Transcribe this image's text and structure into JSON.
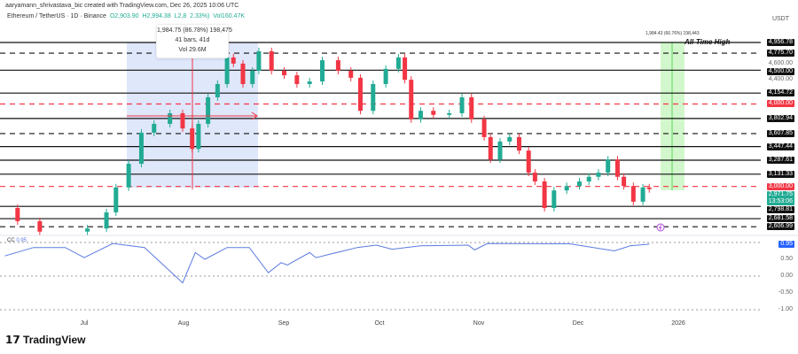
{
  "header": {
    "credit": "aaryamann_shrivastava_bic created with TradingView.com, Dec 26, 2025 10:06 UTC",
    "symbol": "Ethereum / TetherUS · 1D · Binance",
    "open": "O2,903.90",
    "high": "H2,994.38",
    "low": "L2,8",
    "change": "2.33%)",
    "volume": "Vol160.47K",
    "currency": "USDT"
  },
  "range_tooltip": {
    "change": "1,984.75 (86.78%) 198,475",
    "bars": "41 bars, 41d",
    "volume": "Vol 29.6M"
  },
  "green_range_label": "1,984.43 (66.76%) 198,443",
  "ath_label": "All-Time High",
  "branding": "TradingView",
  "colors": {
    "up": "#22ab94",
    "down": "#f23645",
    "cc_line": "#5b7be0",
    "blue_zone": "#dfe7fb",
    "green_zone": "#c8f5bf"
  },
  "chart_data": [
    {
      "type": "candlestick",
      "title": "Ethereum / TetherUS · 1D · Binance",
      "yscale": "log",
      "ylabel": "USDT",
      "x_ticks": [
        "Jul",
        "Aug",
        "Sep",
        "Oct",
        "Nov",
        "Dec",
        "2026"
      ],
      "levels": [
        {
          "value": 4956.78,
          "label": "4,956.78",
          "style": "solid",
          "badge": "black"
        },
        {
          "value": 4775.7,
          "label": "4,775.70",
          "style": "dashed",
          "badge": "black"
        },
        {
          "value": 4600.0,
          "label": "4,600.00",
          "style": "none",
          "badge": "plain"
        },
        {
          "value": 4500.0,
          "label": "4,500.00",
          "style": "solid",
          "badge": "black"
        },
        {
          "value": 4400.0,
          "label": "4,400.00",
          "style": "none",
          "badge": "plain"
        },
        {
          "value": 4154.72,
          "label": "4,154.72",
          "style": "solid",
          "badge": "black"
        },
        {
          "value": 4000.0,
          "label": "4,000.00",
          "style": "dashed-red",
          "badge": "red"
        },
        {
          "value": 3802.94,
          "label": "3,802.94",
          "style": "solid",
          "badge": "black"
        },
        {
          "value": 3607.85,
          "label": "3,607.85",
          "style": "dashed",
          "badge": "black"
        },
        {
          "value": 3447.44,
          "label": "3,447.44",
          "style": "solid",
          "badge": "black"
        },
        {
          "value": 3287.61,
          "label": "3,287.61",
          "style": "solid",
          "badge": "black"
        },
        {
          "value": 3131.33,
          "label": "3,131.33",
          "style": "solid",
          "badge": "black"
        },
        {
          "value": 3000.0,
          "label": "3,000.00",
          "style": "dashed-red",
          "badge": "red"
        },
        {
          "value": 2798.81,
          "label": "2,798.81",
          "style": "solid",
          "badge": "black"
        },
        {
          "value": 2681.58,
          "label": "2,681.58",
          "style": "solid",
          "badge": "black"
        },
        {
          "value": 2606.99,
          "label": "2,606.99",
          "style": "dashed",
          "badge": "black"
        }
      ],
      "last_price": {
        "value": 2971.75,
        "label": "2,971.75",
        "countdown": "13:53:06"
      },
      "closes": [
        [
          "2025-06-06",
          2783
        ],
        [
          "2025-06-10",
          2658
        ],
        [
          "2025-06-17",
          2563
        ],
        [
          "2025-07-02",
          2591
        ],
        [
          "2025-07-08",
          2741
        ],
        [
          "2025-07-11",
          2990
        ],
        [
          "2025-07-15",
          3247
        ],
        [
          "2025-07-19",
          3619
        ],
        [
          "2025-07-23",
          3732
        ],
        [
          "2025-07-28",
          3873
        ],
        [
          "2025-08-01",
          3673
        ],
        [
          "2025-08-04",
          3420
        ],
        [
          "2025-08-06",
          3732
        ],
        [
          "2025-08-09",
          4094
        ],
        [
          "2025-08-12",
          4288
        ],
        [
          "2025-08-15",
          4705
        ],
        [
          "2025-08-17",
          4605
        ],
        [
          "2025-08-20",
          4288
        ],
        [
          "2025-08-23",
          4491
        ],
        [
          "2025-08-25",
          4808
        ],
        [
          "2025-08-29",
          4491
        ],
        [
          "2025-09-02",
          4421
        ],
        [
          "2025-09-06",
          4288
        ],
        [
          "2025-09-10",
          4327
        ],
        [
          "2025-09-14",
          4659
        ],
        [
          "2025-09-19",
          4491
        ],
        [
          "2025-09-23",
          4383
        ],
        [
          "2025-09-26",
          3906
        ],
        [
          "2025-09-30",
          4288
        ],
        [
          "2025-10-04",
          4521
        ],
        [
          "2025-10-08",
          4705
        ],
        [
          "2025-10-10",
          4352
        ],
        [
          "2025-10-12",
          3792
        ],
        [
          "2025-10-15",
          3906
        ],
        [
          "2025-10-19",
          3851
        ],
        [
          "2025-10-24",
          3873
        ],
        [
          "2025-10-28",
          4094
        ],
        [
          "2025-10-31",
          3792
        ],
        [
          "2025-11-04",
          3564
        ],
        [
          "2025-11-06",
          3296
        ],
        [
          "2025-11-09",
          3509
        ],
        [
          "2025-11-12",
          3564
        ],
        [
          "2025-11-15",
          3400
        ],
        [
          "2025-11-18",
          3148
        ],
        [
          "2025-11-20",
          3053
        ],
        [
          "2025-11-23",
          2783
        ],
        [
          "2025-11-26",
          2959
        ],
        [
          "2025-11-30",
          3004
        ],
        [
          "2025-12-04",
          3053
        ],
        [
          "2025-12-07",
          3103
        ],
        [
          "2025-12-10",
          3148
        ],
        [
          "2025-12-13",
          3296
        ],
        [
          "2025-12-16",
          3103
        ],
        [
          "2025-12-18",
          3004
        ],
        [
          "2025-12-21",
          2845
        ],
        [
          "2025-12-24",
          2990
        ],
        [
          "2025-12-26",
          2971.75
        ]
      ]
    },
    {
      "type": "line",
      "title": "CC",
      "current_label": "0.95",
      "ylim": [
        -1,
        1
      ],
      "y_ticks": [
        "0.50",
        "0.00",
        "-0.50",
        "-1.00"
      ],
      "values": [
        [
          "2025-06-06",
          0.6
        ],
        [
          "2025-06-15",
          0.85
        ],
        [
          "2025-06-25",
          0.85
        ],
        [
          "2025-07-01",
          0.55
        ],
        [
          "2025-07-10",
          0.97
        ],
        [
          "2025-07-20",
          0.85
        ],
        [
          "2025-08-01",
          -0.2
        ],
        [
          "2025-08-05",
          0.7
        ],
        [
          "2025-08-08",
          0.5
        ],
        [
          "2025-08-15",
          0.85
        ],
        [
          "2025-08-22",
          0.85
        ],
        [
          "2025-08-28",
          0.1
        ],
        [
          "2025-09-01",
          0.4
        ],
        [
          "2025-09-03",
          0.33
        ],
        [
          "2025-09-10",
          0.7
        ],
        [
          "2025-09-12",
          0.55
        ],
        [
          "2025-09-25",
          0.85
        ],
        [
          "2025-10-01",
          0.92
        ],
        [
          "2025-10-06",
          0.8
        ],
        [
          "2025-10-15",
          0.9
        ],
        [
          "2025-10-30",
          0.92
        ],
        [
          "2025-11-01",
          0.78
        ],
        [
          "2025-11-05",
          0.97
        ],
        [
          "2025-12-01",
          0.96
        ],
        [
          "2025-12-15",
          0.75
        ],
        [
          "2025-12-20",
          0.9
        ],
        [
          "2025-12-26",
          0.95
        ]
      ]
    }
  ]
}
